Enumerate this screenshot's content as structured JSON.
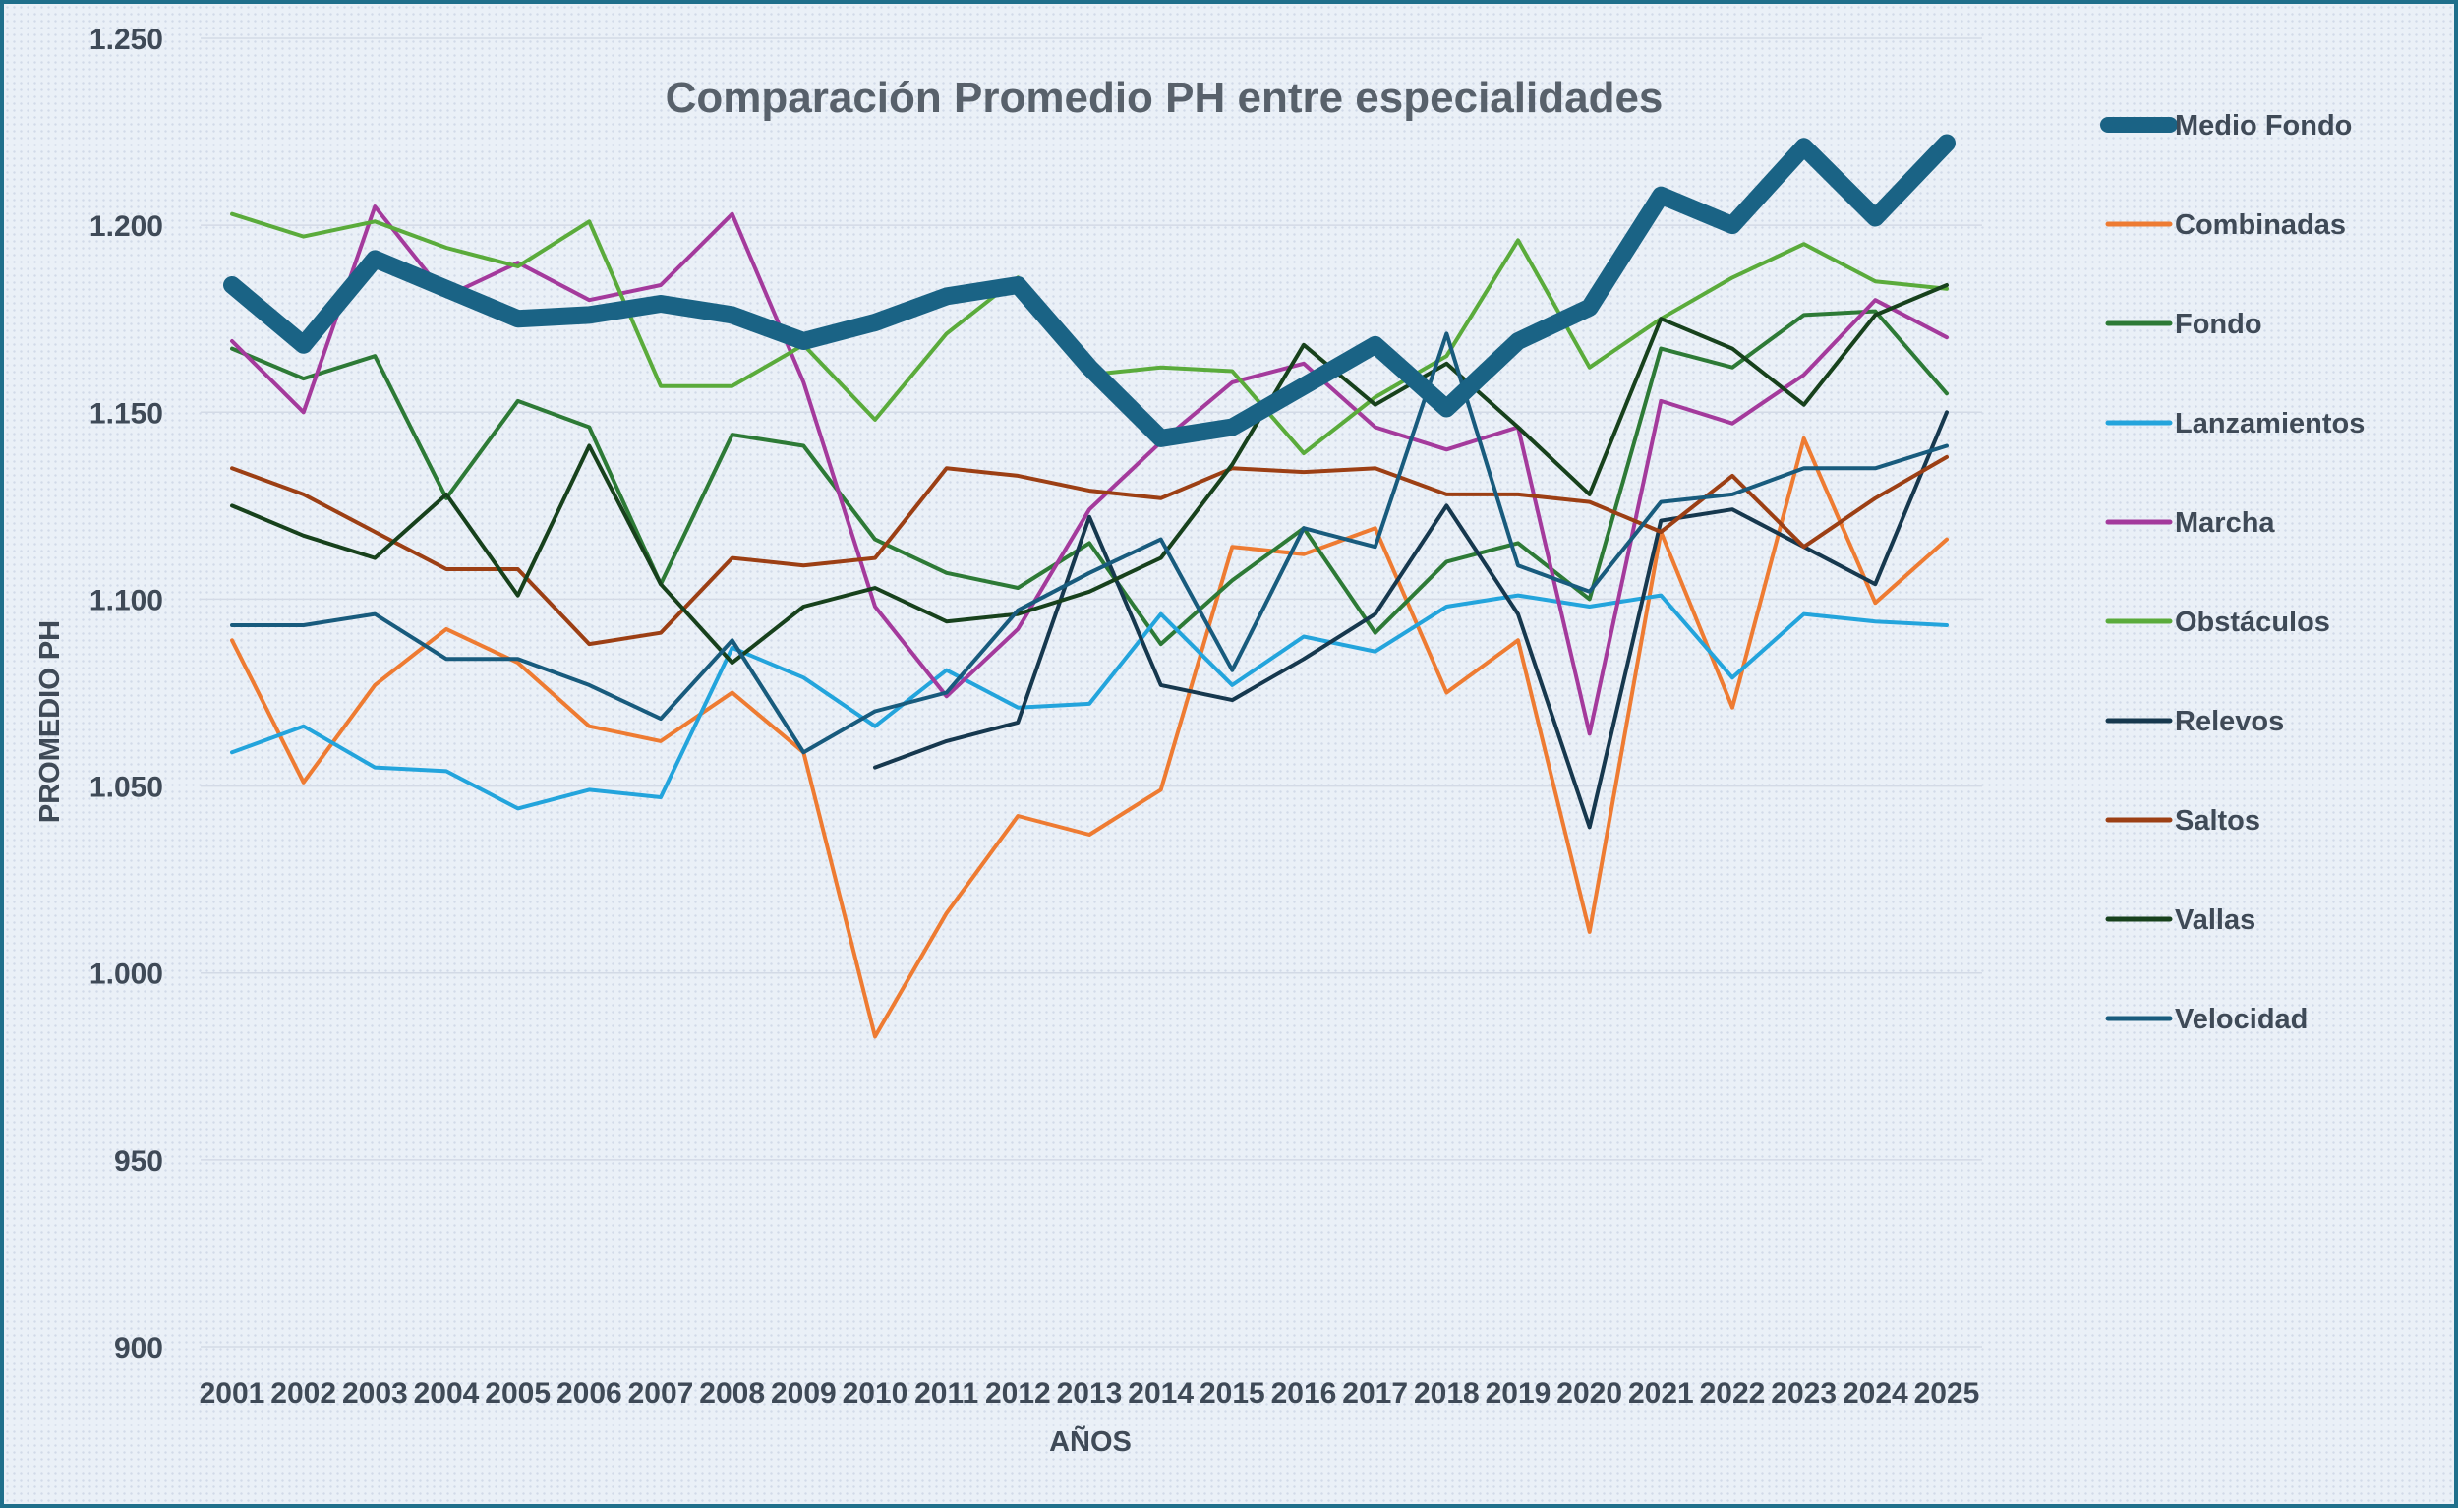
{
  "chart_data": {
    "type": "line",
    "title": "Comparación Promedio PH entre especialidades",
    "xlabel": "AÑOS",
    "ylabel": "PROMEDIO PH",
    "ylim": [
      900,
      1250
    ],
    "yticks": [
      900,
      950,
      1000,
      1050,
      1100,
      1150,
      1200,
      1250
    ],
    "ytick_labels": [
      "900",
      "950",
      "1.000",
      "1.050",
      "1.100",
      "1.150",
      "1.200",
      "1.250"
    ],
    "grid": true,
    "legend_position": "right",
    "x": [
      "2001",
      "2002",
      "2003",
      "2004",
      "2005",
      "2006",
      "2007",
      "2008",
      "2009",
      "2010",
      "2011",
      "2012",
      "2013",
      "2014",
      "2015",
      "2016",
      "2017",
      "2018",
      "2019",
      "2020",
      "2021",
      "2022",
      "2023",
      "2024",
      "2025"
    ],
    "series": [
      {
        "name": "Medio Fondo",
        "color": "#1a6385",
        "width": 18,
        "values": [
          1184,
          1168,
          1191,
          1183,
          1175,
          1176,
          1179,
          1176,
          1169,
          1174,
          1181,
          1184,
          1162,
          1143,
          1146,
          1157,
          1168,
          1151,
          1169,
          1178,
          1208,
          1200,
          1221,
          1202,
          1222
        ]
      },
      {
        "name": "Combinadas",
        "color": "#ee7b32",
        "width": 4,
        "values": [
          1089,
          1051,
          1077,
          1092,
          1083,
          1066,
          1062,
          1075,
          1059,
          983,
          1016,
          1042,
          1037,
          1049,
          1114,
          1112,
          1119,
          1075,
          1089,
          1011,
          1118,
          1071,
          1143,
          1099,
          1116
        ]
      },
      {
        "name": "Fondo",
        "color": "#2d7a36",
        "width": 4,
        "values": [
          1167,
          1159,
          1165,
          1127,
          1153,
          1146,
          1104,
          1144,
          1141,
          1116,
          1107,
          1103,
          1115,
          1088,
          1105,
          1119,
          1091,
          1110,
          1115,
          1100,
          1167,
          1162,
          1176,
          1177,
          1155
        ]
      },
      {
        "name": "Lanzamientos",
        "color": "#23a4dc",
        "width": 4,
        "values": [
          1059,
          1066,
          1055,
          1054,
          1044,
          1049,
          1047,
          1087,
          1079,
          1066,
          1081,
          1071,
          1072,
          1096,
          1077,
          1090,
          1086,
          1098,
          1101,
          1098,
          1101,
          1079,
          1096,
          1094,
          1093
        ]
      },
      {
        "name": "Marcha",
        "color": "#a43a9c",
        "width": 4,
        "values": [
          1169,
          1150,
          1205,
          1181,
          1190,
          1180,
          1184,
          1203,
          1158,
          1098,
          1074,
          1092,
          1124,
          1142,
          1158,
          1163,
          1146,
          1140,
          1146,
          1064,
          1153,
          1147,
          1160,
          1180,
          1170
        ]
      },
      {
        "name": "Obstáculos",
        "color": "#5aab3b",
        "width": 4,
        "values": [
          1203,
          1197,
          1201,
          1194,
          1189,
          1201,
          1157,
          1157,
          1168,
          1148,
          1171,
          1186,
          1160,
          1162,
          1161,
          1139,
          1154,
          1165,
          1196,
          1162,
          1175,
          1186,
          1195,
          1185,
          1183
        ]
      },
      {
        "name": "Relevos",
        "color": "#16384e",
        "width": 4,
        "values": [
          null,
          null,
          null,
          null,
          null,
          null,
          null,
          null,
          null,
          1055,
          1062,
          1067,
          1122,
          1077,
          1073,
          1084,
          1096,
          1125,
          1096,
          1039,
          1121,
          1124,
          1114,
          1104,
          1150
        ]
      },
      {
        "name": "Saltos",
        "color": "#9c3f14",
        "width": 4,
        "values": [
          1135,
          1128,
          1118,
          1108,
          1108,
          1088,
          1091,
          1111,
          1109,
          1111,
          1135,
          1133,
          1129,
          1127,
          1135,
          1134,
          1135,
          1128,
          1128,
          1126,
          1118,
          1133,
          1114,
          1127,
          1138
        ]
      },
      {
        "name": "Vallas",
        "color": "#17411c",
        "width": 4,
        "values": [
          1125,
          1117,
          1111,
          1128,
          1101,
          1141,
          1104,
          1083,
          1098,
          1103,
          1094,
          1096,
          1102,
          1111,
          1136,
          1168,
          1152,
          1163,
          1146,
          1128,
          1175,
          1167,
          1152,
          1176,
          1184
        ]
      },
      {
        "name": "Velocidad",
        "color": "#185b7d",
        "width": 4,
        "values": [
          1093,
          1093,
          1096,
          1084,
          1084,
          1077,
          1068,
          1089,
          1059,
          1070,
          1075,
          1097,
          1107,
          1116,
          1081,
          1119,
          1114,
          1171,
          1109,
          1102,
          1126,
          1128,
          1135,
          1135,
          1141
        ]
      }
    ]
  }
}
